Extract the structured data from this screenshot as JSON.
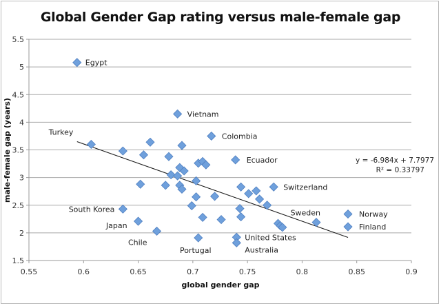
{
  "chart_data": {
    "type": "scatter",
    "title": "Global Gender Gap rating versus male-female gap",
    "xlabel": "global gender gap",
    "ylabel": "male-female gap (years)",
    "xlim": [
      0.55,
      0.9
    ],
    "ylim": [
      1.5,
      5.5
    ],
    "xticks": [
      "0.55",
      "0.6",
      "0.65",
      "0.7",
      "0.75",
      "0.8",
      "0.85",
      "0.9"
    ],
    "yticks": [
      "1.5",
      "2",
      "2.5",
      "3",
      "3.5",
      "4",
      "4.5",
      "5",
      "5.5"
    ],
    "grid": "horizontal",
    "marker": {
      "shape": "diamond",
      "color": "#6fa0dc",
      "edge": "#4f7fc0"
    },
    "points": [
      {
        "x": 0.594,
        "y": 5.08,
        "label": "Egypt"
      },
      {
        "x": 0.686,
        "y": 4.15,
        "label": "Vietnam"
      },
      {
        "x": 0.717,
        "y": 3.75,
        "label": "Colombia"
      },
      {
        "x": 0.739,
        "y": 3.32,
        "label": "Ecuador"
      },
      {
        "x": 0.607,
        "y": 3.6,
        "label": "Turkey"
      },
      {
        "x": 0.636,
        "y": 3.48
      },
      {
        "x": 0.655,
        "y": 3.41
      },
      {
        "x": 0.661,
        "y": 3.64
      },
      {
        "x": 0.678,
        "y": 3.38
      },
      {
        "x": 0.69,
        "y": 3.58
      },
      {
        "x": 0.688,
        "y": 3.18
      },
      {
        "x": 0.692,
        "y": 3.12
      },
      {
        "x": 0.705,
        "y": 3.26
      },
      {
        "x": 0.709,
        "y": 3.29
      },
      {
        "x": 0.712,
        "y": 3.23
      },
      {
        "x": 0.68,
        "y": 3.05
      },
      {
        "x": 0.686,
        "y": 3.03
      },
      {
        "x": 0.703,
        "y": 2.94
      },
      {
        "x": 0.675,
        "y": 2.86
      },
      {
        "x": 0.688,
        "y": 2.86
      },
      {
        "x": 0.69,
        "y": 2.79
      },
      {
        "x": 0.652,
        "y": 2.88
      },
      {
        "x": 0.72,
        "y": 2.66
      },
      {
        "x": 0.703,
        "y": 2.65
      },
      {
        "x": 0.699,
        "y": 2.49
      },
      {
        "x": 0.709,
        "y": 2.28
      },
      {
        "x": 0.726,
        "y": 2.24
      },
      {
        "x": 0.744,
        "y": 2.83
      },
      {
        "x": 0.751,
        "y": 2.71
      },
      {
        "x": 0.758,
        "y": 2.76
      },
      {
        "x": 0.761,
        "y": 2.61
      },
      {
        "x": 0.768,
        "y": 2.5
      },
      {
        "x": 0.774,
        "y": 2.83,
        "label": "Switzerland"
      },
      {
        "x": 0.743,
        "y": 2.44
      },
      {
        "x": 0.744,
        "y": 2.29
      },
      {
        "x": 0.778,
        "y": 2.17
      },
      {
        "x": 0.78,
        "y": 2.13
      },
      {
        "x": 0.782,
        "y": 2.1
      },
      {
        "x": 0.813,
        "y": 2.19,
        "label": "Sweden"
      },
      {
        "x": 0.842,
        "y": 2.34,
        "label": "Norway"
      },
      {
        "x": 0.842,
        "y": 2.11,
        "label": "Finland"
      },
      {
        "x": 0.636,
        "y": 2.43,
        "label": "South Korea"
      },
      {
        "x": 0.65,
        "y": 2.21,
        "label": "Japan"
      },
      {
        "x": 0.667,
        "y": 2.03,
        "label": "Chile"
      },
      {
        "x": 0.705,
        "y": 1.91,
        "label": "Portugal"
      },
      {
        "x": 0.74,
        "y": 1.92,
        "label": "United States"
      },
      {
        "x": 0.74,
        "y": 1.82,
        "label": "Australia"
      }
    ],
    "trendline": {
      "type": "linear",
      "slope": -6.984,
      "intercept": 7.7977,
      "x_range": [
        0.594,
        0.842
      ],
      "equation": "y = -6.984x + 7.7977",
      "r_squared": "R² = 0.33797"
    }
  }
}
